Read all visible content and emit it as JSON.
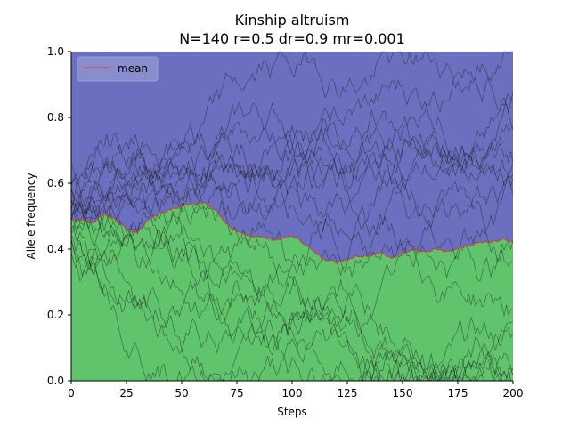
{
  "chart_data": {
    "type": "area",
    "title": "Kinship altruism",
    "subtitle": "N=140 r=0.5 dr=0.9 mr=0.001",
    "xlabel": "Steps",
    "ylabel": "Allele frequency",
    "xlim": [
      0,
      200
    ],
    "ylim": [
      0.0,
      1.0
    ],
    "xticks": [
      "0",
      "25",
      "50",
      "75",
      "100",
      "125",
      "150",
      "175",
      "200"
    ],
    "yticks": [
      "0.0",
      "0.2",
      "0.4",
      "0.6",
      "0.8",
      "1.0"
    ],
    "grid": false,
    "legend": {
      "placement": "top-left",
      "entries": [
        "mean"
      ]
    },
    "colors": {
      "lower_fill": "#5fc46c",
      "upper_fill": "#6a6fbf",
      "mean_line": "#d43a2a",
      "runs": "#1a1a1a"
    },
    "mean": {
      "x": [
        0,
        5,
        10,
        15,
        20,
        25,
        30,
        35,
        40,
        45,
        50,
        55,
        60,
        65,
        70,
        75,
        80,
        85,
        90,
        95,
        100,
        105,
        110,
        115,
        120,
        125,
        130,
        135,
        140,
        145,
        150,
        155,
        160,
        165,
        170,
        175,
        180,
        185,
        190,
        195,
        200
      ],
      "y": [
        0.49,
        0.49,
        0.48,
        0.51,
        0.49,
        0.46,
        0.45,
        0.49,
        0.51,
        0.52,
        0.53,
        0.54,
        0.54,
        0.52,
        0.48,
        0.45,
        0.44,
        0.44,
        0.43,
        0.43,
        0.44,
        0.42,
        0.39,
        0.37,
        0.36,
        0.37,
        0.38,
        0.38,
        0.39,
        0.37,
        0.39,
        0.4,
        0.39,
        0.4,
        0.39,
        0.4,
        0.41,
        0.42,
        0.42,
        0.43,
        0.42
      ]
    },
    "runs_count": 20
  }
}
